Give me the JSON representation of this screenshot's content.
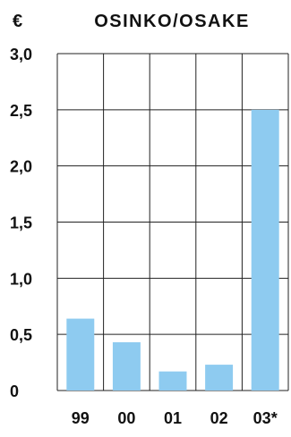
{
  "chart_data": {
    "type": "bar",
    "title": "OSINKO/OSAKE",
    "unit": "€",
    "categories": [
      "99",
      "00",
      "01",
      "02",
      "03*"
    ],
    "values": [
      0.64,
      0.43,
      0.17,
      0.23,
      2.5
    ],
    "ylim": [
      0,
      3.0
    ],
    "yticks": [
      "0",
      "0,5",
      "1,0",
      "1,5",
      "2,0",
      "2,5",
      "3,0"
    ],
    "ytick_values": [
      0,
      0.5,
      1.0,
      1.5,
      2.0,
      2.5,
      3.0
    ],
    "grid": true,
    "legend": "none",
    "colors": {
      "bar": "#8ecbf0",
      "grid": "#222222",
      "text": "#111111"
    }
  }
}
